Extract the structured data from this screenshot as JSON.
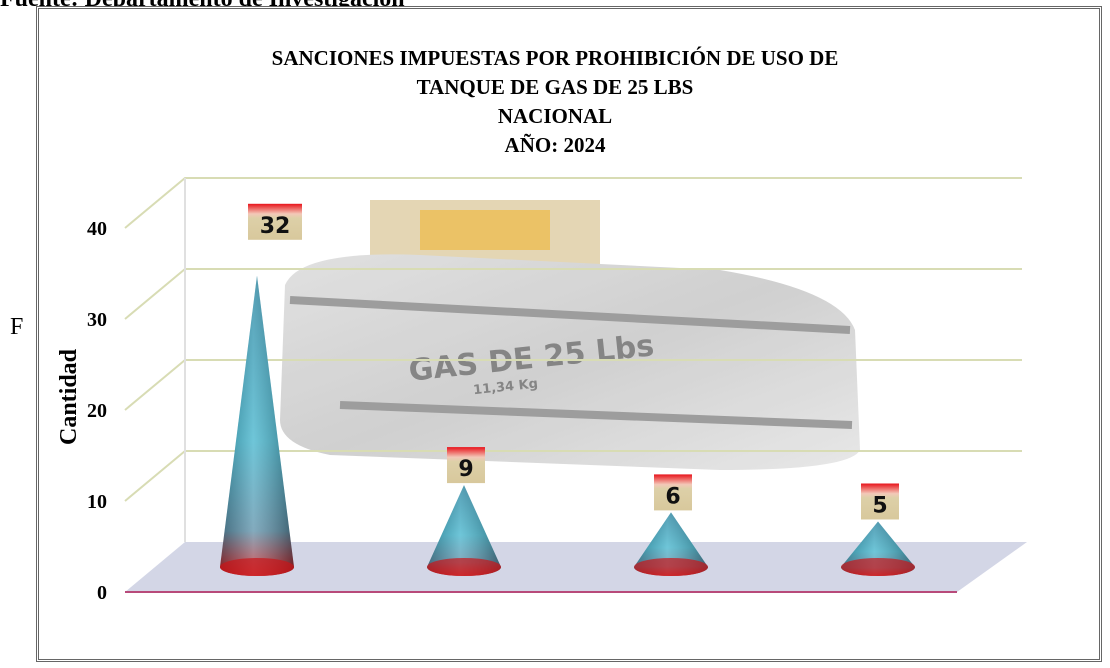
{
  "source_text": "Fuente: Departamento de Investigación",
  "side_letter": "F",
  "tank_label": {
    "line1": "GAS DE 25 Lbs",
    "line2": "11,34 Kg"
  },
  "chart_data": {
    "type": "bar",
    "bar_shape": "cone-3d",
    "title": [
      "SANCIONES IMPUESTAS POR PROHIBICIÓN DE USO DE",
      "TANQUE DE GAS DE 25 LBS",
      "NACIONAL",
      "AÑO: 2024"
    ],
    "ylabel": "Cantidad",
    "xlabel": "",
    "ylim": [
      0,
      40
    ],
    "yticks": [
      0,
      10,
      20,
      30,
      40
    ],
    "grid": true,
    "categories": [
      "",
      "",
      "",
      ""
    ],
    "values": [
      32,
      9,
      6,
      5
    ],
    "data_labels": [
      "32",
      "9",
      "6",
      "5"
    ],
    "colors": {
      "cone_top": "#1f7f9c",
      "cone_mid": "#3fb3cc",
      "cone_base": "#d0191b",
      "label_top": "#e8131b",
      "label_bg": "#ddd0a8",
      "floor": "#c4c8de",
      "grid": "#d8dcb4"
    }
  }
}
